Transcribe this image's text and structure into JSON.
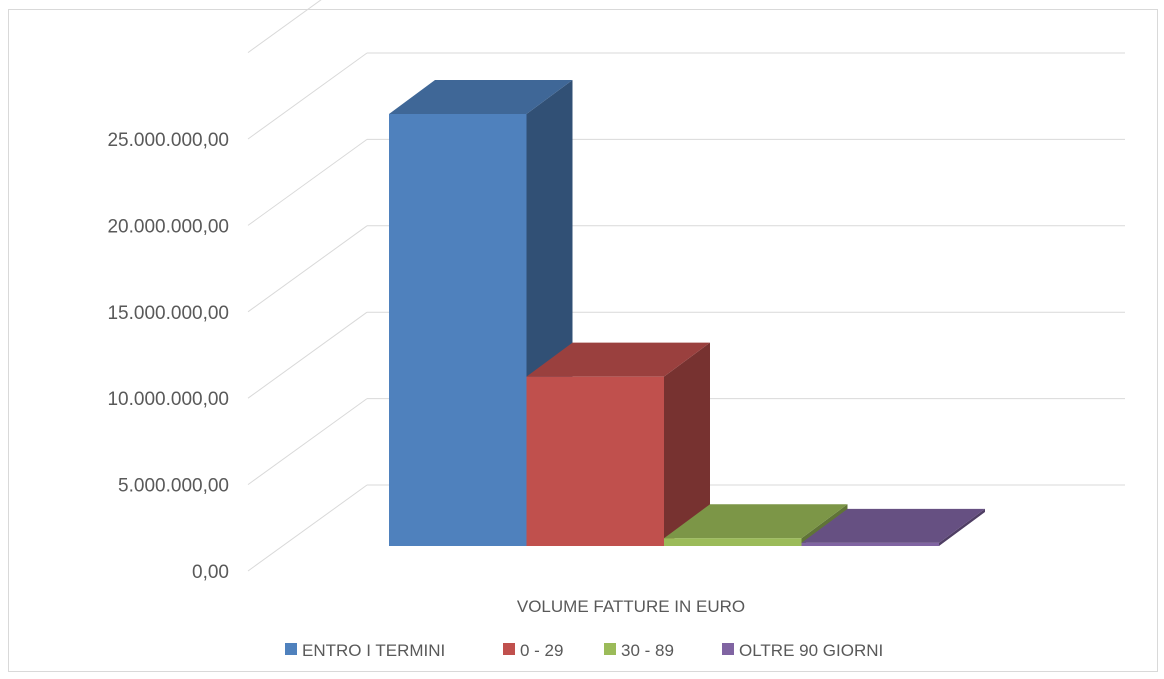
{
  "chart_data": {
    "type": "bar",
    "style": "3d-column",
    "categories": [
      "VOLUME FATTURE IN EURO"
    ],
    "series": [
      {
        "name": "ENTRO I TERMINI",
        "values": [
          25000000
        ],
        "color": "#4f81bd"
      },
      {
        "name": "0 - 29",
        "values": [
          9800000
        ],
        "color": "#c0504d"
      },
      {
        "name": "30 - 89",
        "values": [
          450000
        ],
        "color": "#9bbb59"
      },
      {
        "name": "OLTRE 90 GIORNI",
        "values": [
          180000
        ],
        "color": "#8064a2"
      }
    ],
    "y_ticks": [
      "0,00",
      "5.000.000,00",
      "10.000.000,00",
      "15.000.000,00",
      "20.000.000,00",
      "25.000.000,00"
    ],
    "ylim": [
      0,
      25000000
    ],
    "grid": true,
    "legend_position": "bottom"
  }
}
